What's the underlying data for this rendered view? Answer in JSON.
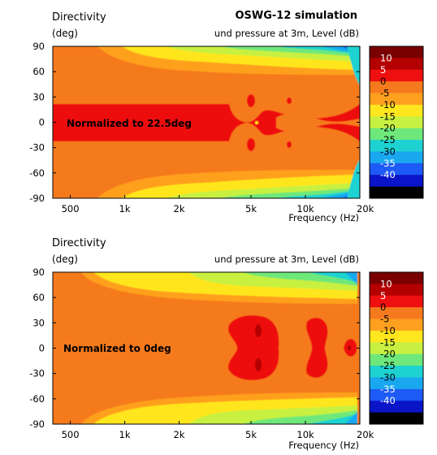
{
  "chart_data": [
    {
      "type": "heatmap",
      "title": "OSWG-12 simulation",
      "ylabel_line1": "Directivity",
      "ylabel_line2": "(deg)",
      "zlabel": "und pressure at 3m, Level  (dB)",
      "xlabel": "Frequency  (Hz)",
      "annotation": "Normalized to 22.5deg",
      "x_scale": "log",
      "xlim": [
        400,
        20000
      ],
      "ylim": [
        -90,
        90
      ],
      "x_ticks": [
        {
          "value": 500,
          "label": "500"
        },
        {
          "value": 1000,
          "label": "1k"
        },
        {
          "value": 2000,
          "label": "2k"
        },
        {
          "value": 5000,
          "label": "5k"
        },
        {
          "value": 10000,
          "label": "10k"
        },
        {
          "value": 20000,
          "label": "20k"
        }
      ],
      "y_ticks": [
        90,
        60,
        30,
        0,
        -30,
        -60,
        -90
      ],
      "colorbar_levels": [
        10,
        5,
        0,
        -5,
        -10,
        -15,
        -20,
        -25,
        -30,
        -35,
        -40
      ],
      "normalized_angle_deg": 22.5
    },
    {
      "type": "heatmap",
      "title": "",
      "ylabel_line1": "Directivity",
      "ylabel_line2": "(deg)",
      "zlabel": "und pressure at 3m, Level  (dB)",
      "xlabel": "Frequency  (Hz)",
      "annotation": "Normalized to 0deg",
      "x_scale": "log",
      "xlim": [
        400,
        20000
      ],
      "ylim": [
        -90,
        90
      ],
      "x_ticks": [
        {
          "value": 500,
          "label": "500"
        },
        {
          "value": 1000,
          "label": "1k"
        },
        {
          "value": 2000,
          "label": "2k"
        },
        {
          "value": 5000,
          "label": "5k"
        },
        {
          "value": 10000,
          "label": "10k"
        },
        {
          "value": 20000,
          "label": "20k"
        }
      ],
      "y_ticks": [
        90,
        60,
        30,
        0,
        -30,
        -60,
        -90
      ],
      "colorbar_levels": [
        10,
        5,
        0,
        -5,
        -10,
        -15,
        -20,
        -25,
        -30,
        -35,
        -40
      ],
      "normalized_angle_deg": 0
    }
  ],
  "colorbar_colors": [
    "#7a0000",
    "#b40000",
    "#ee1010",
    "#f57a1e",
    "#ffa01e",
    "#ffe61e",
    "#c8f040",
    "#6ee87a",
    "#1ed2d2",
    "#19a8f0",
    "#1e5af5",
    "#0a14c8",
    "#000000"
  ]
}
